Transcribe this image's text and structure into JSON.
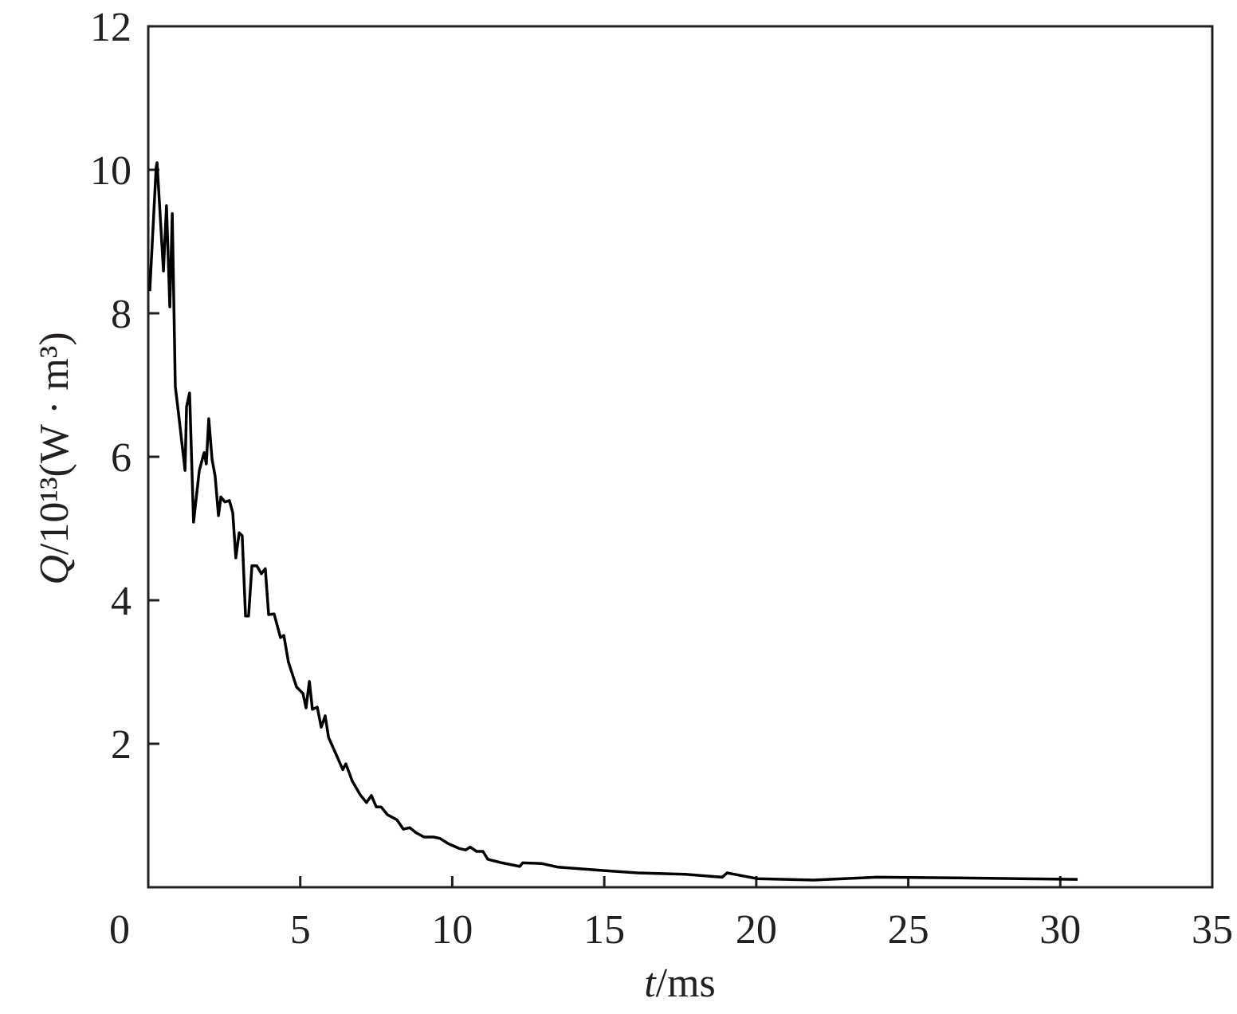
{
  "chart_data": {
    "type": "line",
    "xlabel_symbol": "t",
    "xlabel_unit": "/ms",
    "ylabel_symbol": "Q",
    "ylabel_unit": "/10¹³(W · m³)",
    "xlim": [
      0,
      35
    ],
    "xticks": [
      0,
      5,
      10,
      15,
      20,
      25,
      30,
      35
    ],
    "ylim": [
      0,
      12
    ],
    "yticks": [
      2,
      4,
      6,
      8,
      10,
      12
    ],
    "color": "#000000",
    "x": [
      0.05,
      0.26,
      0.29,
      0.5,
      0.6,
      0.71,
      0.79,
      0.89,
      1.0,
      1.21,
      1.26,
      1.36,
      1.49,
      1.68,
      1.84,
      1.91,
      1.99,
      2.1,
      2.2,
      2.31,
      2.39,
      2.52,
      2.67,
      2.78,
      2.88,
      2.99,
      3.09,
      3.2,
      3.3,
      3.41,
      3.57,
      3.72,
      3.85,
      3.96,
      4.14,
      4.35,
      4.46,
      4.61,
      4.88,
      5.09,
      5.19,
      5.3,
      5.4,
      5.56,
      5.69,
      5.82,
      5.93,
      6.14,
      6.4,
      6.5,
      6.71,
      6.97,
      7.18,
      7.34,
      7.5,
      7.66,
      7.87,
      8.18,
      8.39,
      8.6,
      8.81,
      9.07,
      9.39,
      9.6,
      9.86,
      10.23,
      10.44,
      10.59,
      10.8,
      11.01,
      11.17,
      11.64,
      12.22,
      12.32,
      12.95,
      13.48,
      15.05,
      16.1,
      17.67,
      18.88,
      19.04,
      20.03,
      21.87,
      23.96,
      26.59,
      30.57
    ],
    "values": [
      8.31,
      10.03,
      10.1,
      8.59,
      9.5,
      8.09,
      9.39,
      6.98,
      6.59,
      5.81,
      6.7,
      6.89,
      5.09,
      5.81,
      6.06,
      5.9,
      6.53,
      5.96,
      5.73,
      5.18,
      5.44,
      5.37,
      5.39,
      5.22,
      4.59,
      4.94,
      4.9,
      3.78,
      3.78,
      4.48,
      4.48,
      4.37,
      4.44,
      3.8,
      3.81,
      3.48,
      3.51,
      3.14,
      2.79,
      2.7,
      2.5,
      2.87,
      2.48,
      2.51,
      2.23,
      2.39,
      2.09,
      1.89,
      1.64,
      1.72,
      1.48,
      1.29,
      1.18,
      1.28,
      1.12,
      1.12,
      1.01,
      0.94,
      0.81,
      0.83,
      0.76,
      0.7,
      0.7,
      0.68,
      0.61,
      0.54,
      0.52,
      0.56,
      0.5,
      0.5,
      0.39,
      0.34,
      0.29,
      0.34,
      0.33,
      0.28,
      0.23,
      0.2,
      0.18,
      0.14,
      0.2,
      0.12,
      0.1,
      0.14,
      0.13,
      0.11
    ]
  }
}
